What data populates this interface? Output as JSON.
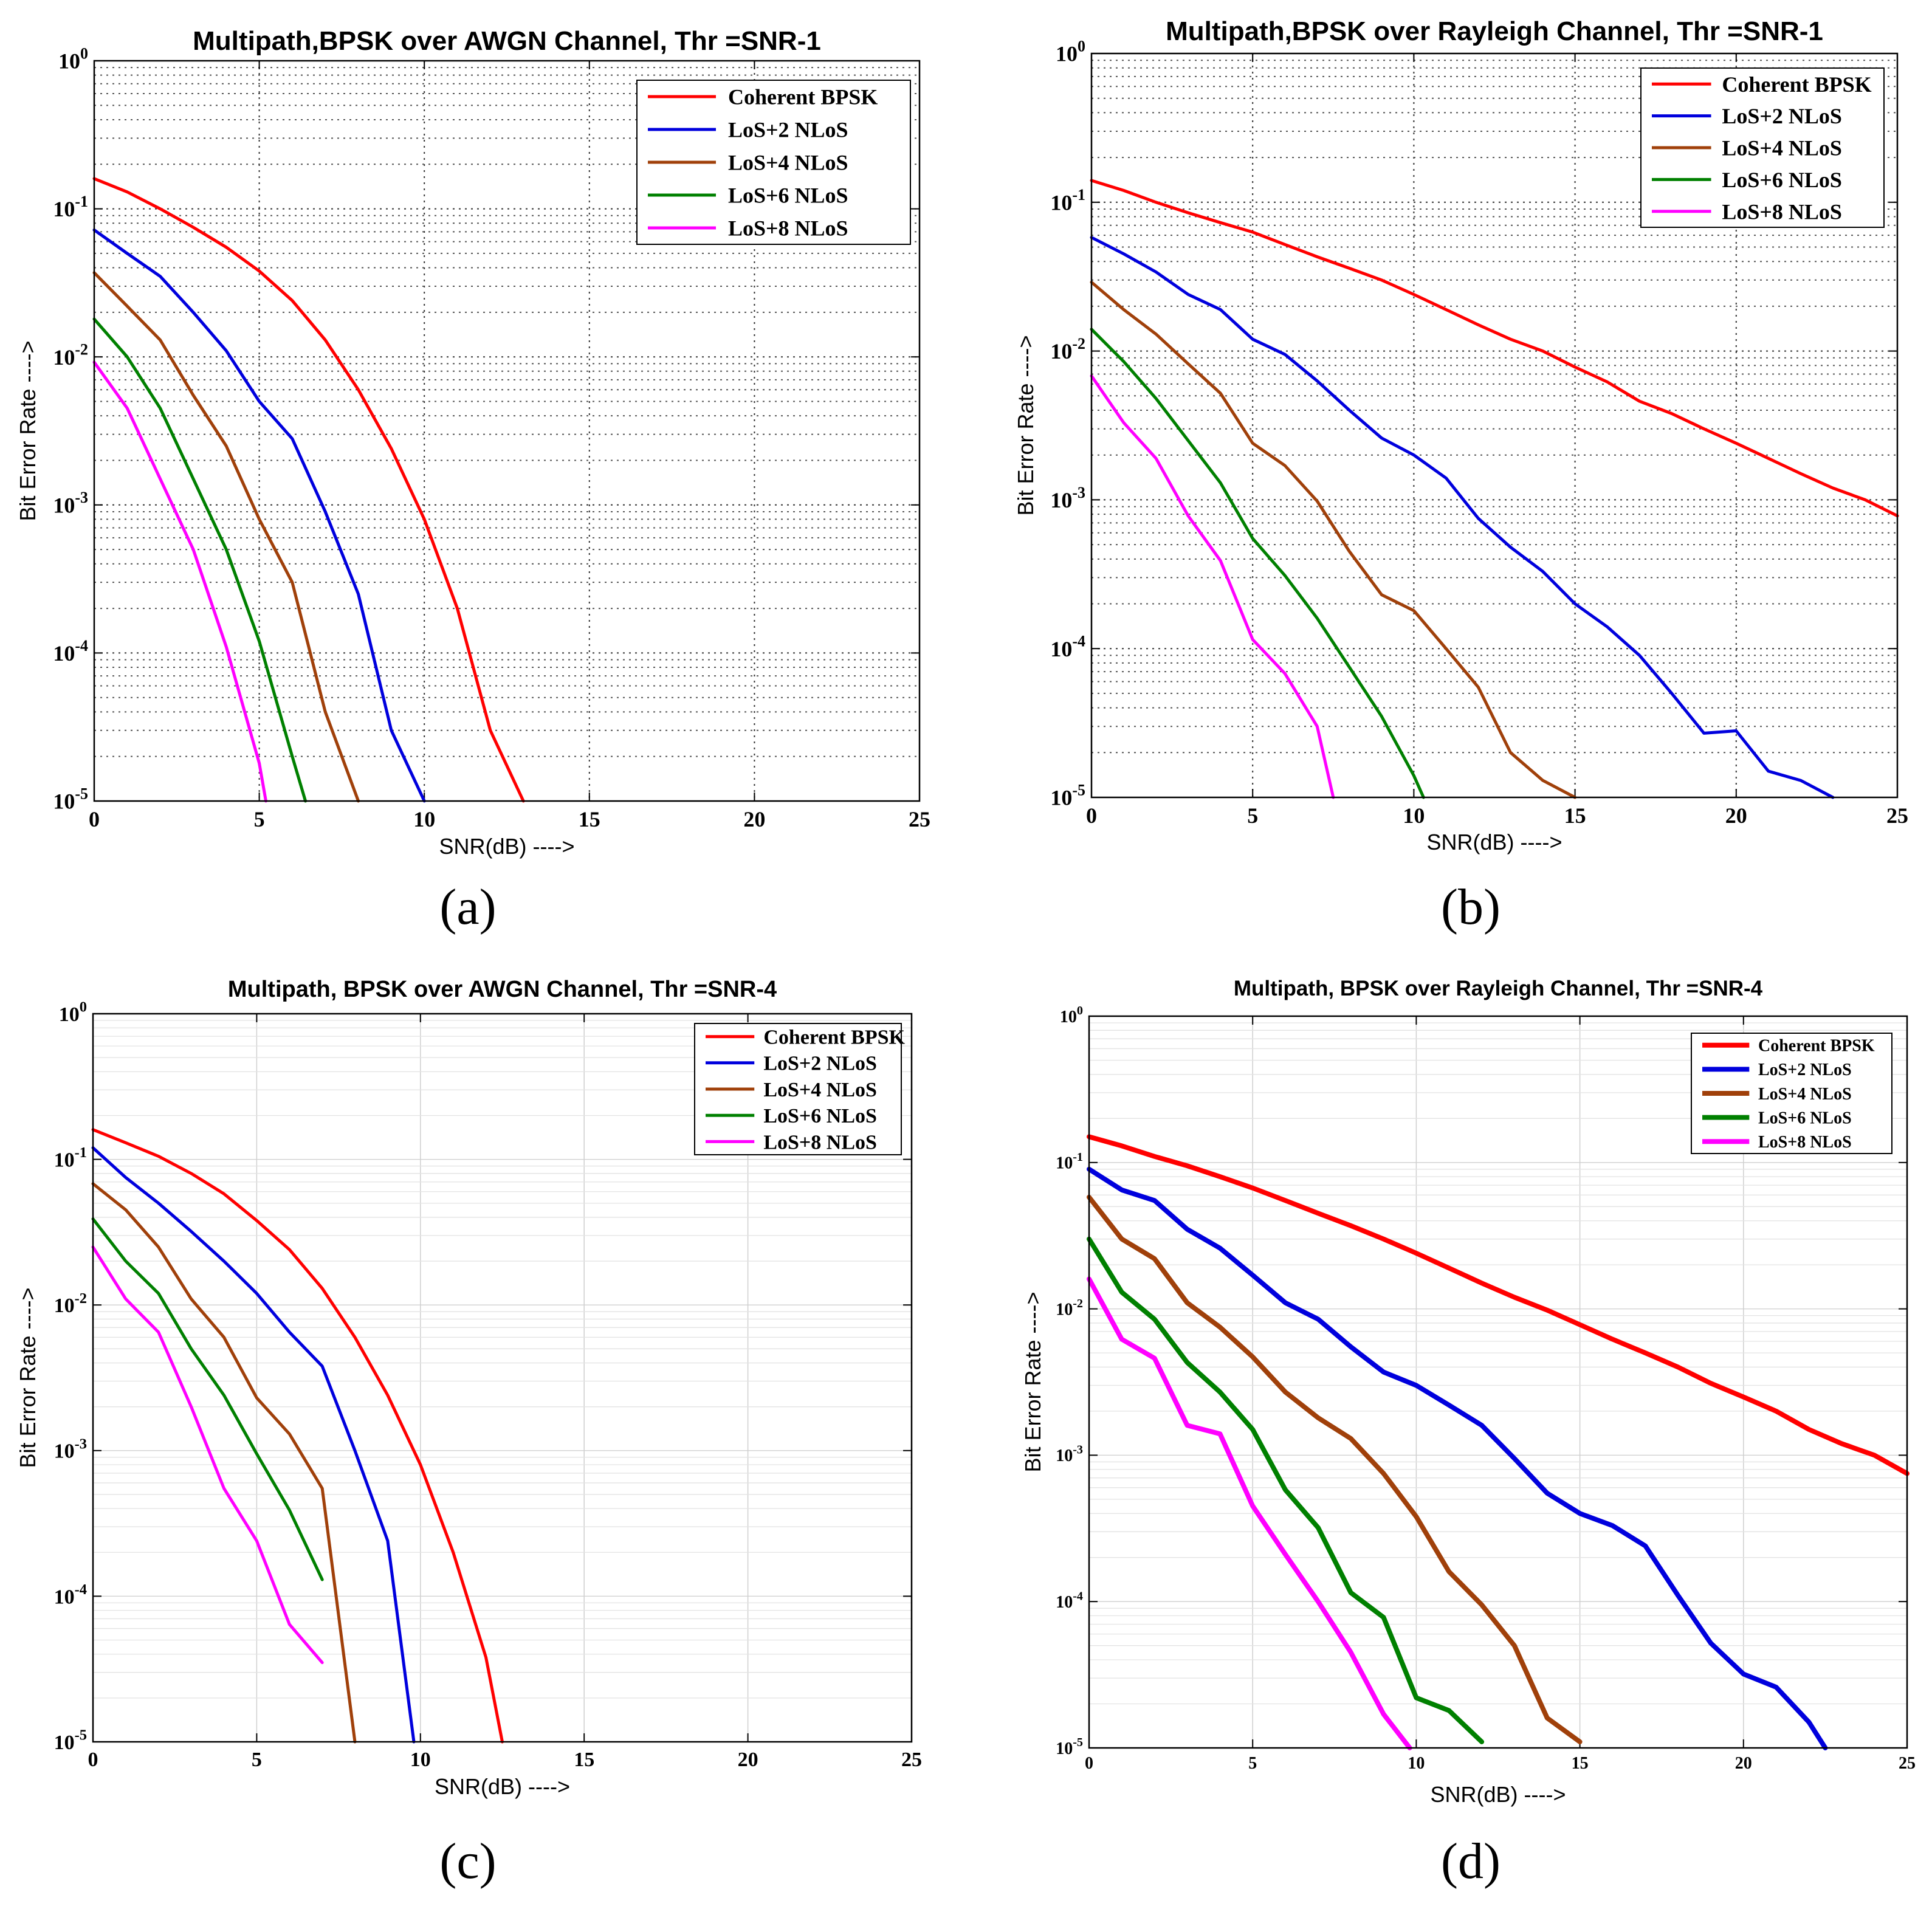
{
  "figure_labels": [
    "(a)",
    "(b)",
    "(c)",
    "(d)"
  ],
  "colors": {
    "coherent": "#ff0000",
    "los2": "#0000dd",
    "los4": "#a0400a",
    "los6": "#008000",
    "los8": "#ff00ff"
  },
  "chart_data": [
    {
      "type": "line",
      "title": "Multipath,BPSK over AWGN Channel, Thr =SNR-1",
      "xlabel": "SNR(dB) ---->",
      "ylabel": "Bit Error Rate ---->",
      "xlim": [
        0,
        25
      ],
      "ylim": [
        1e-05,
        1
      ],
      "yscale": "log",
      "xticks": [
        "0",
        "5",
        "10",
        "15",
        "20",
        "25"
      ],
      "grid": "dotted",
      "legend": "top-right",
      "series": [
        {
          "name": "Coherent BPSK",
          "x": [
            0,
            1,
            2,
            3,
            4,
            5,
            6,
            7,
            8,
            9,
            10,
            11,
            12,
            13
          ],
          "values": [
            0.16,
            0.13,
            0.1,
            0.075,
            0.055,
            0.038,
            0.024,
            0.013,
            0.006,
            0.0024,
            0.0008,
            0.0002,
            3e-05,
            1e-05
          ]
        },
        {
          "name": "LoS+2 NLoS",
          "x": [
            0,
            1,
            2,
            3,
            4,
            5,
            6,
            7,
            8,
            9,
            10
          ],
          "values": [
            0.072,
            0.05,
            0.035,
            0.02,
            0.011,
            0.005,
            0.0028,
            0.0009,
            0.00025,
            3e-05,
            1e-05
          ]
        },
        {
          "name": "LoS+4 NLoS",
          "x": [
            0,
            1,
            2,
            3,
            4,
            5,
            6,
            7,
            8
          ],
          "values": [
            0.037,
            0.022,
            0.013,
            0.0055,
            0.0025,
            0.0008,
            0.0003,
            4e-05,
            1e-05
          ]
        },
        {
          "name": "LoS+6 NLoS",
          "x": [
            0,
            1,
            2,
            3,
            4,
            5,
            6,
            6.4
          ],
          "values": [
            0.018,
            0.01,
            0.0045,
            0.0015,
            0.0005,
            0.00012,
            2e-05,
            1e-05
          ]
        },
        {
          "name": "LoS+8 NLoS",
          "x": [
            0,
            1,
            2,
            3,
            4,
            5,
            5.2
          ],
          "values": [
            0.0092,
            0.0045,
            0.0015,
            0.0005,
            0.00011,
            1.8e-05,
            1e-05
          ]
        }
      ]
    },
    {
      "type": "line",
      "title": "Multipath,BPSK over Rayleigh Channel, Thr =SNR-1",
      "xlabel": "SNR(dB) ---->",
      "ylabel": "Bit Error Rate ---->",
      "xlim": [
        0,
        25
      ],
      "ylim": [
        1e-05,
        1
      ],
      "yscale": "log",
      "xticks": [
        "0",
        "5",
        "10",
        "15",
        "20",
        "25"
      ],
      "grid": "dotted",
      "legend": "top-right",
      "series": [
        {
          "name": "Coherent BPSK",
          "x": [
            0,
            1,
            2,
            3,
            4,
            5,
            6,
            7,
            8,
            9,
            10,
            11,
            12,
            13,
            14,
            15,
            16,
            17,
            18,
            19,
            20,
            21,
            22,
            23,
            24,
            25
          ],
          "values": [
            0.14,
            0.12,
            0.1,
            0.085,
            0.073,
            0.063,
            0.052,
            0.043,
            0.036,
            0.03,
            0.024,
            0.019,
            0.015,
            0.012,
            0.01,
            0.0078,
            0.0062,
            0.0046,
            0.0038,
            0.003,
            0.0024,
            0.0019,
            0.0015,
            0.0012,
            0.001,
            0.00078
          ]
        },
        {
          "name": "LoS+2 NLoS",
          "x": [
            0,
            1,
            2,
            3,
            4,
            5,
            6,
            7,
            8,
            9,
            10,
            11,
            12,
            13,
            14,
            15,
            16,
            17,
            18,
            19,
            20,
            21,
            22,
            23
          ],
          "values": [
            0.058,
            0.045,
            0.034,
            0.024,
            0.019,
            0.012,
            0.0095,
            0.0063,
            0.004,
            0.0026,
            0.002,
            0.0014,
            0.00075,
            0.00048,
            0.00033,
            0.0002,
            0.00014,
            9e-05,
            5e-05,
            2.7e-05,
            2.8e-05,
            1.5e-05,
            1.3e-05,
            1e-05
          ]
        },
        {
          "name": "LoS+4 NLoS",
          "x": [
            0,
            1,
            2,
            3,
            4,
            5,
            6,
            7,
            8,
            9,
            10,
            11,
            12,
            13,
            14,
            15
          ],
          "values": [
            0.029,
            0.019,
            0.013,
            0.0082,
            0.0052,
            0.0024,
            0.0017,
            0.00098,
            0.00045,
            0.00023,
            0.00018,
            0.0001,
            5.5e-05,
            2e-05,
            1.3e-05,
            1e-05
          ]
        },
        {
          "name": "LoS+6 NLoS",
          "x": [
            0,
            1,
            2,
            3,
            4,
            5,
            6,
            7,
            8,
            9,
            10,
            10.3
          ],
          "values": [
            0.014,
            0.0085,
            0.0048,
            0.0025,
            0.0013,
            0.00055,
            0.00031,
            0.00016,
            7.5e-05,
            3.5e-05,
            1.4e-05,
            1e-05
          ]
        },
        {
          "name": "LoS+8 NLoS",
          "x": [
            0,
            1,
            2,
            3,
            4,
            5,
            6,
            7,
            7.5
          ],
          "values": [
            0.0068,
            0.0033,
            0.0019,
            0.00078,
            0.00039,
            0.000115,
            6.8e-05,
            3e-05,
            1e-05
          ]
        }
      ]
    },
    {
      "type": "line",
      "title": "Multipath, BPSK over AWGN Channel, Thr =SNR-4",
      "xlabel": "SNR(dB) ---->",
      "ylabel": "Bit Error Rate ---->",
      "xlim": [
        0,
        25
      ],
      "ylim": [
        1e-05,
        1
      ],
      "yscale": "log",
      "xticks": [
        "0",
        "5",
        "10",
        "15",
        "20",
        "25"
      ],
      "grid": "solid-light",
      "legend": "top-right",
      "series": [
        {
          "name": "Coherent BPSK",
          "x": [
            0,
            1,
            2,
            3,
            4,
            5,
            6,
            7,
            8,
            9,
            10,
            11,
            12,
            12.5
          ],
          "values": [
            0.16,
            0.13,
            0.105,
            0.08,
            0.058,
            0.038,
            0.024,
            0.013,
            0.006,
            0.0024,
            0.0008,
            0.0002,
            3.8e-05,
            1e-05
          ]
        },
        {
          "name": "LoS+2 NLoS",
          "x": [
            0,
            1,
            2,
            3,
            4,
            5,
            6,
            7,
            8,
            9,
            9.8
          ],
          "values": [
            0.12,
            0.075,
            0.05,
            0.032,
            0.02,
            0.012,
            0.0065,
            0.0038,
            0.001,
            0.00024,
            1e-05
          ]
        },
        {
          "name": "LoS+4 NLoS",
          "x": [
            0,
            1,
            2,
            3,
            4,
            5,
            6,
            7,
            8
          ],
          "values": [
            0.068,
            0.045,
            0.025,
            0.011,
            0.006,
            0.0023,
            0.0013,
            0.00055,
            1e-05
          ]
        },
        {
          "name": "LoS+6 NLoS",
          "x": [
            0,
            1,
            2,
            3,
            4,
            5,
            6,
            7
          ],
          "values": [
            0.039,
            0.02,
            0.012,
            0.005,
            0.0024,
            0.00095,
            0.00039,
            0.00013
          ]
        },
        {
          "name": "LoS+8 NLoS",
          "x": [
            0,
            1,
            2,
            3,
            4,
            5,
            6,
            7
          ],
          "values": [
            0.025,
            0.011,
            0.0065,
            0.002,
            0.00055,
            0.00024,
            6.4e-05,
            3.5e-05
          ]
        }
      ]
    },
    {
      "type": "line",
      "title": "Multipath, BPSK over Rayleigh Channel, Thr =SNR-4",
      "xlabel": "SNR(dB) ---->",
      "ylabel": "Bit Error Rate ---->",
      "xlim": [
        0,
        25
      ],
      "ylim": [
        1e-05,
        1
      ],
      "yscale": "log",
      "xticks": [
        "0",
        "5",
        "10",
        "15",
        "20",
        "25"
      ],
      "grid": "solid-light",
      "legend": "top-right",
      "series": [
        {
          "name": "Coherent BPSK",
          "x": [
            0,
            1,
            2,
            3,
            4,
            5,
            6,
            7,
            8,
            9,
            10,
            11,
            12,
            13,
            14,
            15,
            16,
            17,
            18,
            19,
            20,
            21,
            22,
            23,
            24,
            25
          ],
          "values": [
            0.15,
            0.13,
            0.11,
            0.095,
            0.08,
            0.067,
            0.055,
            0.045,
            0.037,
            0.03,
            0.024,
            0.019,
            0.015,
            0.012,
            0.0098,
            0.0078,
            0.0062,
            0.005,
            0.004,
            0.0031,
            0.0025,
            0.002,
            0.0015,
            0.0012,
            0.001,
            0.00075
          ]
        },
        {
          "name": "LoS+2 NLoS",
          "x": [
            0,
            1,
            2,
            3,
            4,
            5,
            6,
            7,
            8,
            9,
            10,
            11,
            12,
            13,
            14,
            15,
            16,
            17,
            18,
            19,
            20,
            21,
            22,
            22.5
          ],
          "values": [
            0.09,
            0.065,
            0.055,
            0.035,
            0.026,
            0.017,
            0.011,
            0.0085,
            0.0055,
            0.0037,
            0.003,
            0.0022,
            0.0016,
            0.00095,
            0.00055,
            0.0004,
            0.00033,
            0.00024,
            0.00011,
            5.2e-05,
            3.2e-05,
            2.6e-05,
            1.5e-05,
            1e-05
          ]
        },
        {
          "name": "LoS+4 NLoS",
          "x": [
            0,
            1,
            2,
            3,
            4,
            5,
            6,
            7,
            8,
            9,
            10,
            11,
            12,
            13,
            14,
            15
          ],
          "values": [
            0.058,
            0.03,
            0.022,
            0.011,
            0.0075,
            0.0047,
            0.0027,
            0.0018,
            0.0013,
            0.00075,
            0.00038,
            0.00016,
            9.5e-05,
            5e-05,
            1.6e-05,
            1.1e-05
          ]
        },
        {
          "name": "LoS+6 NLoS",
          "x": [
            0,
            1,
            2,
            3,
            4,
            5,
            6,
            7,
            8,
            9,
            10,
            11,
            12
          ],
          "values": [
            0.03,
            0.013,
            0.0085,
            0.0043,
            0.0027,
            0.0015,
            0.00058,
            0.00032,
            0.000115,
            7.8e-05,
            2.2e-05,
            1.8e-05,
            1.1e-05
          ]
        },
        {
          "name": "LoS+8 NLoS",
          "x": [
            0,
            1,
            2,
            3,
            4,
            5,
            6,
            7,
            8,
            9,
            9.8
          ],
          "values": [
            0.016,
            0.0062,
            0.0046,
            0.0016,
            0.0014,
            0.00045,
            0.00021,
            0.0001,
            4.5e-05,
            1.7e-05,
            1e-05
          ]
        }
      ]
    }
  ]
}
